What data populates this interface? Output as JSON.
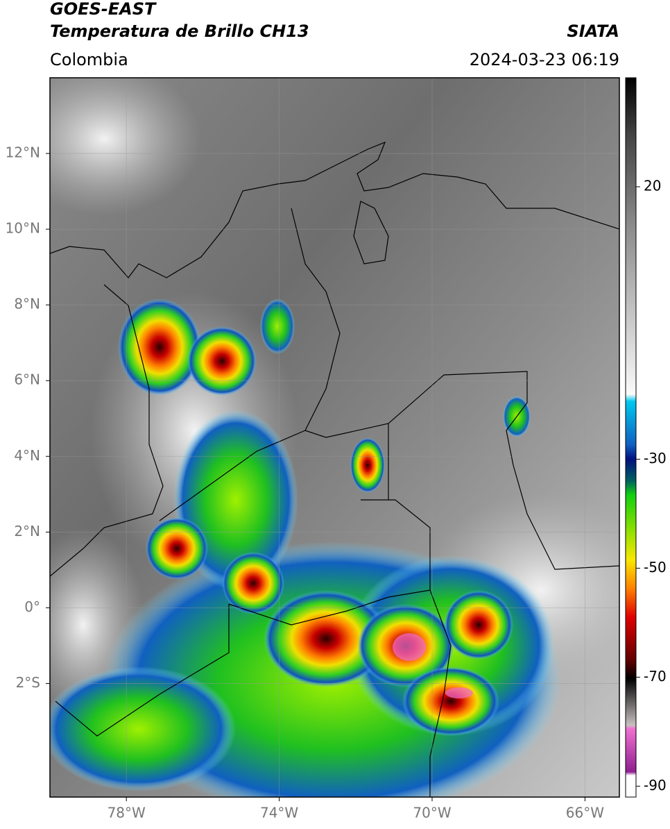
{
  "header": {
    "title": "GOES-EAST",
    "subtitle": "Temperatura de Brillo CH13",
    "region": "Colombia",
    "source": "SIATA",
    "datetime": "2024-03-23 06:19"
  },
  "map": {
    "latlim": [
      -5,
      14
    ],
    "lonlim": [
      -80,
      -65.1
    ],
    "latticks": [
      {
        "value": 12,
        "label": "12°N"
      },
      {
        "value": 10,
        "label": "10°N"
      },
      {
        "value": 8,
        "label": "8°N"
      },
      {
        "value": 6,
        "label": "6°N"
      },
      {
        "value": 4,
        "label": "4°N"
      },
      {
        "value": 2,
        "label": "2°N"
      },
      {
        "value": 0,
        "label": "0°"
      },
      {
        "value": -2,
        "label": "2°S"
      }
    ],
    "lonticks": [
      {
        "value": -78,
        "label": "78°W"
      },
      {
        "value": -74,
        "label": "74°W"
      },
      {
        "value": -70,
        "label": "70°W"
      },
      {
        "value": -66,
        "label": "66°W"
      }
    ]
  },
  "colorbar": {
    "lim": [
      -92,
      40
    ],
    "ticks": [
      20,
      -30,
      -50,
      -70,
      -90
    ]
  }
}
